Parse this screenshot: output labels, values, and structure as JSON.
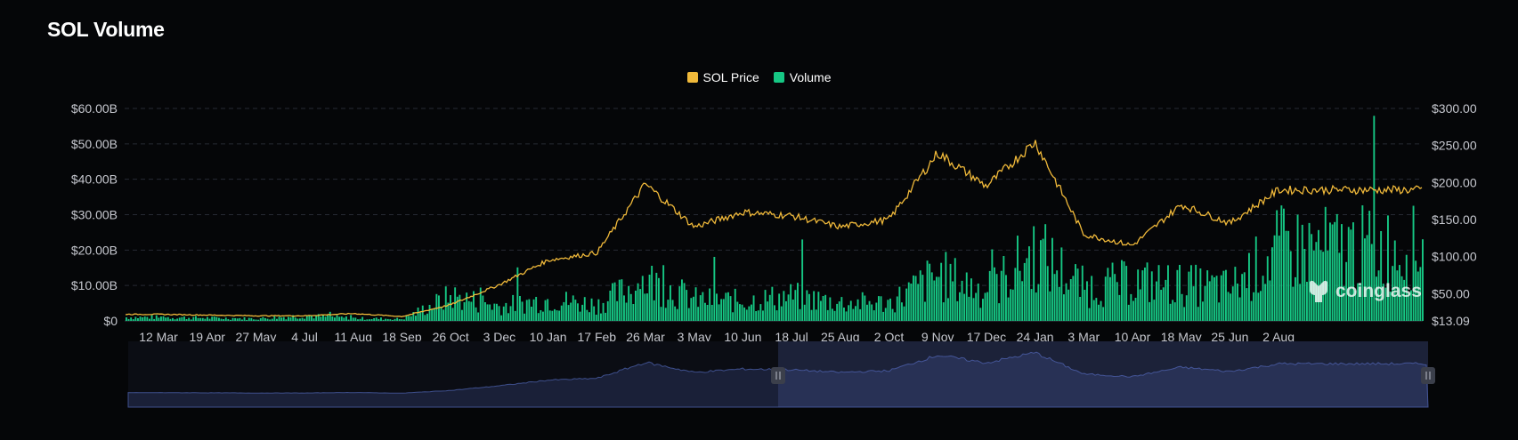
{
  "title": "SOL Volume",
  "watermark": "coinglass",
  "chart_data": {
    "type": "bar+line",
    "title": "SOL Volume",
    "legend": [
      {
        "name": "SOL Price",
        "color": "#f0b93a"
      },
      {
        "name": "Volume",
        "color": "#16c784"
      }
    ],
    "legend_position": "top-center",
    "grid": true,
    "y_left": {
      "ticks": [
        "$0",
        "$10.00B",
        "$20.00B",
        "$30.00B",
        "$40.00B",
        "$50.00B",
        "$60.00B"
      ],
      "range": [
        0,
        60
      ],
      "unit": "billion USD"
    },
    "y_right": {
      "ticks": [
        "$13.09",
        "$50.00",
        "$100.00",
        "$150.00",
        "$200.00",
        "$250.00",
        "$300.00"
      ],
      "range": [
        13.09,
        300
      ]
    },
    "x_ticks": [
      "12 Mar",
      "19 Apr",
      "27 May",
      "4 Jul",
      "11 Aug",
      "18 Sep",
      "26 Oct",
      "3 Dec",
      "10 Jan",
      "17 Feb",
      "26 Mar",
      "3 May",
      "10 Jun",
      "18 Jul",
      "25 Aug",
      "2 Oct",
      "9 Nov",
      "17 Dec",
      "24 Jan",
      "3 Mar",
      "10 Apr",
      "18 May",
      "25 Jun",
      "2 Aug"
    ],
    "series": [
      {
        "name": "SOL Price",
        "type": "line",
        "color": "#f0b93a",
        "points": [
          {
            "x": "12 Mar",
            "y": 22
          },
          {
            "x": "19 Apr",
            "y": 21
          },
          {
            "x": "27 May",
            "y": 20
          },
          {
            "x": "4 Jul",
            "y": 20
          },
          {
            "x": "11 Aug",
            "y": 23
          },
          {
            "x": "18 Sep",
            "y": 19
          },
          {
            "x": "26 Oct",
            "y": 35
          },
          {
            "x": "3 Dec",
            "y": 62
          },
          {
            "x": "10 Jan",
            "y": 95
          },
          {
            "x": "17 Feb",
            "y": 105
          },
          {
            "x": "26 Mar",
            "y": 198
          },
          {
            "x": "3 May",
            "y": 140
          },
          {
            "x": "10 Jun",
            "y": 160
          },
          {
            "x": "18 Jul",
            "y": 155
          },
          {
            "x": "25 Aug",
            "y": 140
          },
          {
            "x": "2 Oct",
            "y": 150
          },
          {
            "x": "9 Nov",
            "y": 240
          },
          {
            "x": "17 Dec",
            "y": 195
          },
          {
            "x": "24 Jan",
            "y": 255
          },
          {
            "x": "3 Mar",
            "y": 130
          },
          {
            "x": "10 Apr",
            "y": 115
          },
          {
            "x": "18 May",
            "y": 170
          },
          {
            "x": "25 Jun",
            "y": 145
          },
          {
            "x": "2 Aug",
            "y": 190
          }
        ]
      },
      {
        "name": "Volume",
        "type": "bar",
        "color": "#16c784",
        "points": [
          {
            "x": "12 Mar",
            "y": 1.1
          },
          {
            "x": "19 Apr",
            "y": 0.9
          },
          {
            "x": "27 May",
            "y": 0.7
          },
          {
            "x": "4 Jul",
            "y": 1.6
          },
          {
            "x": "11 Aug",
            "y": 0.8
          },
          {
            "x": "18 Sep",
            "y": 0.6
          },
          {
            "x": "26 Oct",
            "y": 7.5
          },
          {
            "x": "3 Dec",
            "y": 4.5
          },
          {
            "x": "10 Jan",
            "y": 6.5
          },
          {
            "x": "17 Feb",
            "y": 5.0
          },
          {
            "x": "26 Mar",
            "y": 12.5
          },
          {
            "x": "3 May",
            "y": 6.5
          },
          {
            "x": "10 Jun",
            "y": 6.0
          },
          {
            "x": "18 Jul",
            "y": 7.5
          },
          {
            "x": "25 Aug",
            "y": 5.5
          },
          {
            "x": "2 Oct",
            "y": 5.5
          },
          {
            "x": "9 Nov",
            "y": 14.0
          },
          {
            "x": "17 Dec",
            "y": 9.0
          },
          {
            "x": "24 Jan",
            "y": 21.0
          },
          {
            "x": "3 Mar",
            "y": 10.0
          },
          {
            "x": "10 Apr",
            "y": 12.0
          },
          {
            "x": "18 May",
            "y": 11.0
          },
          {
            "x": "25 Jun",
            "y": 10.0
          },
          {
            "x": "2 Aug",
            "y": 22.0
          }
        ]
      }
    ],
    "zoom_selection": {
      "start_fraction": 0.5,
      "end_fraction": 1.0
    }
  }
}
